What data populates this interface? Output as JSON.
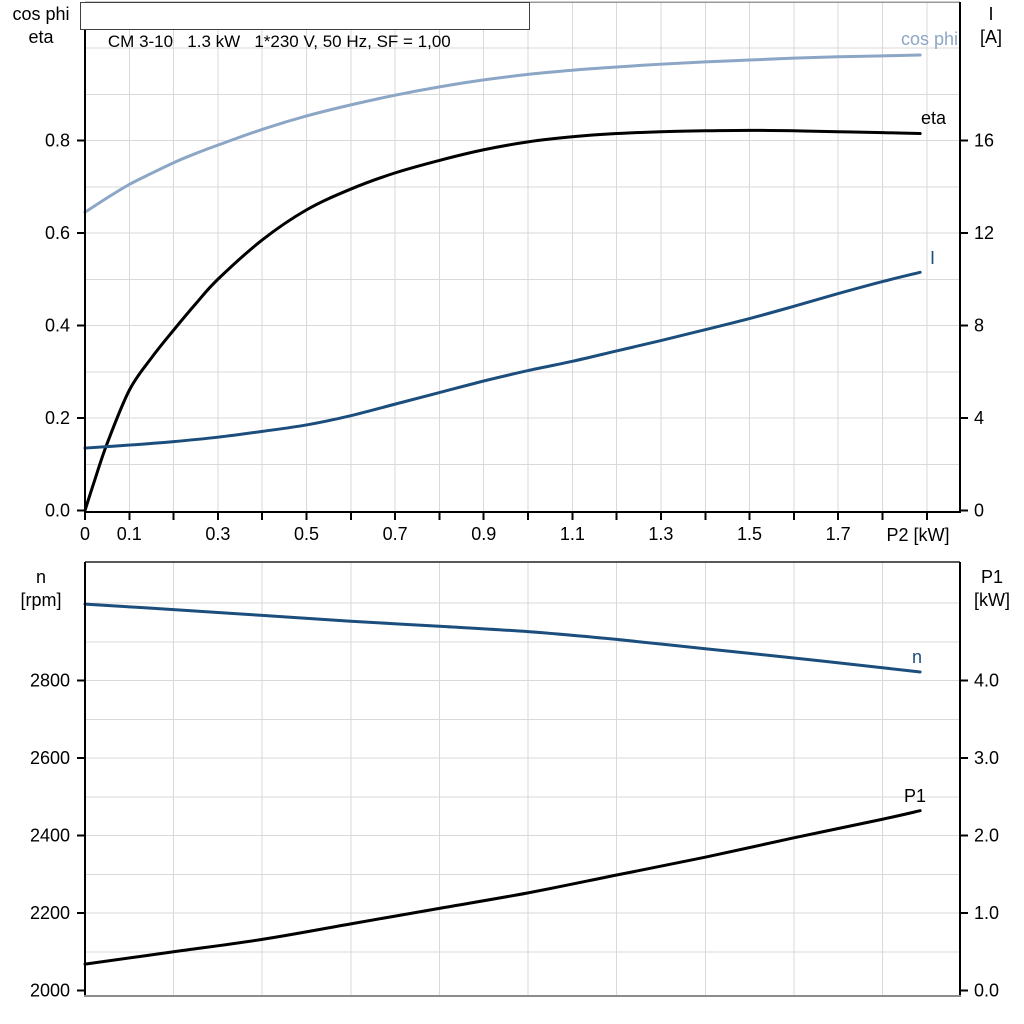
{
  "title": "CM 3-10   1.3 kW   1*230 V, 50 Hz, SF = 1,00",
  "axes_labels": {
    "top_left_line1": "cos phi",
    "top_left_line2": "eta",
    "top_right_line1": "I",
    "top_right_line2": "[A]",
    "x_label": "P2 [kW]",
    "bottom_left_line1": "n",
    "bottom_left_line2": "[rpm]",
    "bottom_right_line1": "P1",
    "bottom_right_line2": "[kW]"
  },
  "colors": {
    "light_blue": "#8CA6C5",
    "dark_blue": "#1C4E7D",
    "black": "#000000",
    "grid": "#D9D9D9",
    "frame_gray": "#8C8C8C",
    "frame_dark": "#595959"
  },
  "chart_data": [
    {
      "type": "line",
      "panel": "top",
      "title": "CM 3-10   1.3 kW   1*230 V, 50 Hz, SF = 1,00",
      "grid": true,
      "legend_position": "inline-labels",
      "xlabel": "P2 [kW]",
      "xlim": [
        0,
        1.975
      ],
      "x_minor_tick_step": 0.1,
      "x_tick_values": [
        0,
        0.1,
        0.3,
        0.5,
        0.7,
        0.9,
        1.1,
        1.3,
        1.5,
        1.7
      ],
      "x_tick_labels": [
        "0",
        "0.1",
        "0.3",
        "0.5",
        "0.7",
        "0.9",
        "1.1",
        "1.3",
        "1.5",
        "1.7"
      ],
      "y_left": {
        "label_lines": [
          "cos phi",
          "eta"
        ],
        "lim": [
          0,
          1.1
        ],
        "grid_step": 0.1,
        "tick_values": [
          0.0,
          0.2,
          0.4,
          0.6,
          0.8
        ],
        "tick_labels": [
          "0.0",
          "0.2",
          "0.4",
          "0.6",
          "0.8"
        ]
      },
      "y_right": {
        "label_lines": [
          "I",
          "[A]"
        ],
        "lim": [
          0,
          22
        ],
        "tick_values": [
          0,
          4,
          8,
          12,
          16
        ],
        "tick_labels": [
          "0",
          "4",
          "8",
          "12",
          "16"
        ]
      },
      "series": [
        {
          "name": "cos phi",
          "axis": "left",
          "color": "#8CA6C5",
          "x": [
            0,
            0.05,
            0.1,
            0.15,
            0.2,
            0.25,
            0.3,
            0.4,
            0.5,
            0.6,
            0.7,
            0.8,
            0.9,
            1.0,
            1.1,
            1.2,
            1.3,
            1.4,
            1.5,
            1.6,
            1.7,
            1.8,
            1.885
          ],
          "y": [
            0.645,
            0.676,
            0.705,
            0.729,
            0.752,
            0.772,
            0.79,
            0.824,
            0.853,
            0.877,
            0.898,
            0.916,
            0.931,
            0.943,
            0.952,
            0.959,
            0.965,
            0.97,
            0.974,
            0.978,
            0.981,
            0.983,
            0.985
          ]
        },
        {
          "name": "eta",
          "axis": "left",
          "color": "#000000",
          "x": [
            0,
            0.02,
            0.05,
            0.1,
            0.15,
            0.2,
            0.25,
            0.3,
            0.4,
            0.5,
            0.6,
            0.7,
            0.8,
            0.9,
            1.0,
            1.1,
            1.2,
            1.3,
            1.4,
            1.5,
            1.6,
            1.7,
            1.8,
            1.885
          ],
          "y": [
            0,
            0.06,
            0.145,
            0.26,
            0.33,
            0.39,
            0.447,
            0.5,
            0.585,
            0.65,
            0.695,
            0.73,
            0.757,
            0.78,
            0.797,
            0.808,
            0.815,
            0.819,
            0.821,
            0.822,
            0.821,
            0.819,
            0.817,
            0.815
          ]
        },
        {
          "name": "I",
          "axis": "right",
          "color": "#1C4E7D",
          "x": [
            0,
            0.1,
            0.2,
            0.3,
            0.4,
            0.5,
            0.6,
            0.7,
            0.8,
            0.9,
            1.0,
            1.1,
            1.2,
            1.3,
            1.4,
            1.5,
            1.6,
            1.7,
            1.8,
            1.885
          ],
          "y": [
            2.7,
            2.83,
            2.98,
            3.17,
            3.42,
            3.7,
            4.1,
            4.6,
            5.1,
            5.6,
            6.05,
            6.45,
            6.9,
            7.35,
            7.82,
            8.3,
            8.83,
            9.38,
            9.9,
            10.3
          ]
        }
      ]
    },
    {
      "type": "line",
      "panel": "bottom",
      "grid": true,
      "legend_position": "inline-labels",
      "xlabel": "",
      "xlim": [
        0,
        1.975
      ],
      "x_grid_step": 0.2,
      "x_tick_values": [],
      "x_tick_labels": [],
      "y_left": {
        "label_lines": [
          "n",
          "[rpm]"
        ],
        "lim": [
          2000,
          3105
        ],
        "grid_step": 100,
        "tick_values": [
          2000,
          2200,
          2400,
          2600,
          2800
        ],
        "tick_labels": [
          "2000",
          "2200",
          "2400",
          "2600",
          "2800"
        ]
      },
      "y_right": {
        "label_lines": [
          "P1",
          "[kW]"
        ],
        "lim": [
          0,
          5.5
        ],
        "tick_values": [
          0,
          1,
          2,
          3,
          4
        ],
        "tick_labels": [
          "0.0",
          "1.0",
          "2.0",
          "3.0",
          "4.0"
        ]
      },
      "series": [
        {
          "name": "n",
          "axis": "left",
          "color": "#1C4E7D",
          "x": [
            0,
            0.2,
            0.4,
            0.6,
            0.8,
            1.0,
            1.2,
            1.4,
            1.6,
            1.8,
            1.885
          ],
          "y": [
            2997,
            2983,
            2968,
            2953,
            2940,
            2926,
            2906,
            2882,
            2858,
            2833,
            2822
          ]
        },
        {
          "name": "P1",
          "axis": "right",
          "color": "#000000",
          "x": [
            0,
            0.2,
            0.4,
            0.6,
            0.8,
            1.0,
            1.2,
            1.4,
            1.6,
            1.8,
            1.885
          ],
          "y": [
            0.34,
            0.5,
            0.66,
            0.86,
            1.06,
            1.26,
            1.49,
            1.72,
            1.97,
            2.21,
            2.32
          ]
        }
      ]
    }
  ]
}
